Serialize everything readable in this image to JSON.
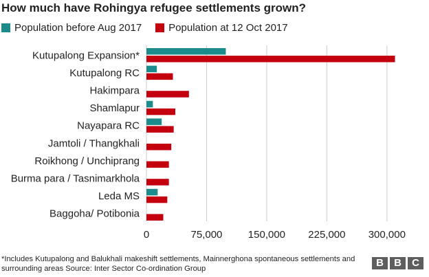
{
  "title": "How much have Rohingya refugee settlements grown?",
  "legend": {
    "before": "Population before Aug 2017",
    "after": "Population at 12 Oct 2017"
  },
  "colors": {
    "before": "#1b8b8b",
    "after": "#c4000e",
    "grid": "#cccccc",
    "text": "#222222",
    "logo": "#5e5e5e"
  },
  "chart_data": {
    "type": "bar",
    "orientation": "horizontal",
    "categories": [
      "Kutupalong Expansion*",
      "Kutupalong RC",
      "Hakimpara",
      "Shamlapur",
      "Nayapara RC",
      "Jamtoli / Thangkhali",
      "Roikhong / Unchiprang",
      "Burma para / Tasnimarkhola",
      "Leda MS",
      "Baggoha/ Potibonia"
    ],
    "series": [
      {
        "name": "Population before Aug 2017",
        "values": [
          99000,
          13000,
          0,
          8000,
          19000,
          0,
          0,
          0,
          14000,
          0
        ]
      },
      {
        "name": "Population at 12 Oct 2017",
        "values": [
          310000,
          33000,
          53000,
          36000,
          34000,
          31000,
          28000,
          28000,
          26000,
          21000
        ]
      }
    ],
    "xlim": [
      0,
      325000
    ],
    "ticks": [
      0,
      75000,
      150000,
      225000,
      300000
    ],
    "tick_labels": [
      "0",
      "75,000",
      "150,000",
      "225,000",
      "300,000"
    ],
    "grid": "vertical",
    "legend_position": "top-left"
  },
  "footer": {
    "source": "*Includes Kutupalong and Balukhali makeshift settlements, Mainnerghona spontaneous settlements and surrounding areas Source: Inter Sector Co-ordination Group",
    "logo_letters": [
      "B",
      "B",
      "C"
    ]
  }
}
